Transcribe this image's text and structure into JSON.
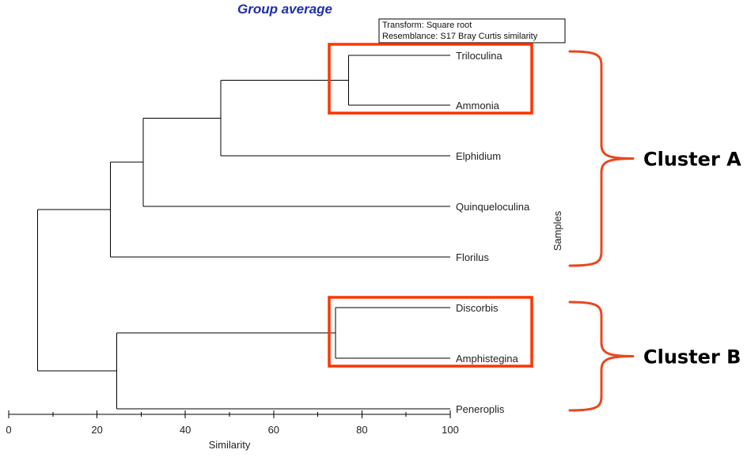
{
  "title": "Group average",
  "legend": {
    "transform": "Transform: Square root",
    "resemblance": "Resemblance: S17 Bray Curtis similarity"
  },
  "axis": {
    "label": "Similarity",
    "ticks": [
      "0",
      "20",
      "40",
      "60",
      "80",
      "100"
    ],
    "min": 0,
    "max": 100
  },
  "samples_label": "Samples",
  "leaves": [
    "Triloculina",
    "Ammonia",
    "Elphidium",
    "Quinqueloculina",
    "Florilus",
    "Discorbis",
    "Amphistegina",
    "Peneroplis"
  ],
  "merges": [
    {
      "id": "n1",
      "children": [
        "Triloculina",
        "Ammonia"
      ],
      "similarity": 77
    },
    {
      "id": "n2",
      "children": [
        "n1",
        "Elphidium"
      ],
      "similarity": 48
    },
    {
      "id": "n3",
      "children": [
        "n2",
        "Quinqueloculina"
      ],
      "similarity": 30.5
    },
    {
      "id": "n4",
      "children": [
        "n3",
        "Florilus"
      ],
      "similarity": 23
    },
    {
      "id": "n5",
      "children": [
        "Discorbis",
        "Amphistegina"
      ],
      "similarity": 74
    },
    {
      "id": "n6",
      "children": [
        "n5",
        "Peneroplis"
      ],
      "similarity": 24.5
    },
    {
      "id": "root",
      "children": [
        "n4",
        "n6"
      ],
      "similarity": 6.5
    }
  ],
  "clusters": [
    {
      "label": "Cluster A",
      "highlight": [
        "Triloculina",
        "Ammonia"
      ],
      "span": [
        "Triloculina",
        "Florilus"
      ]
    },
    {
      "label": "Cluster B",
      "highlight": [
        "Discorbis",
        "Amphistegina"
      ],
      "span": [
        "Discorbis",
        "Peneroplis"
      ]
    }
  ],
  "colors": {
    "title": "#1f2fa8",
    "highlight": "#ff3300",
    "brace": "#e8481f",
    "line": "#000000"
  }
}
